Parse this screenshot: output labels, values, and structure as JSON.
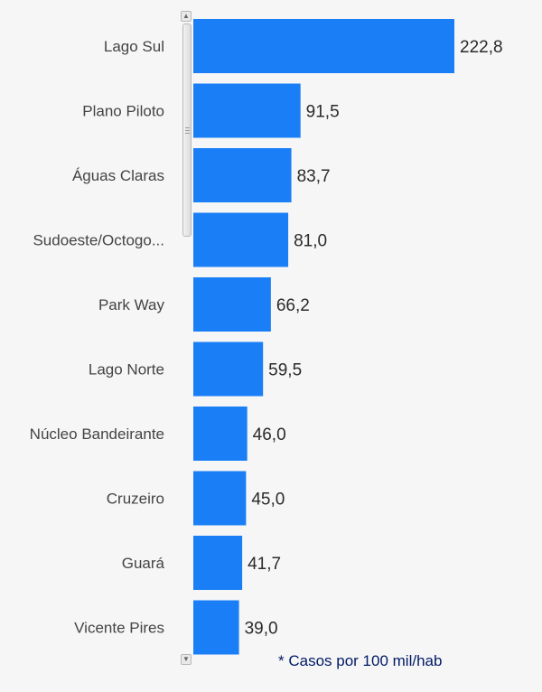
{
  "chart_data": {
    "type": "bar",
    "orientation": "horizontal",
    "categories": [
      "Lago Sul",
      "Plano Piloto",
      "Águas Claras",
      "Sudoeste/Octogo...",
      "Park Way",
      "Lago Norte",
      "Núcleo Bandeirante",
      "Cruzeiro",
      "Guará",
      "Vicente Pires"
    ],
    "values": [
      222.8,
      91.5,
      83.7,
      81.0,
      66.2,
      59.5,
      46.0,
      45.0,
      41.7,
      39.0
    ],
    "value_labels": [
      "222,8",
      "91,5",
      "83,7",
      "81,0",
      "66,2",
      "59,5",
      "46,0",
      "45,0",
      "41,7",
      "39,0"
    ],
    "xlim": [
      0,
      280
    ],
    "grid": false,
    "bar_color": "#1a7ff6",
    "title": "",
    "xlabel": "",
    "ylabel": ""
  },
  "footnote": "* Casos por 100 mil/hab",
  "scrollbar": {
    "up_icon": "chevron-up-icon",
    "down_icon": "chevron-down-icon"
  },
  "colors": {
    "background": "#f6f6f6",
    "bar": "#1a7ff6",
    "label": "#444444",
    "value_label": "#2b2b2b",
    "footnote": "#001a66"
  }
}
